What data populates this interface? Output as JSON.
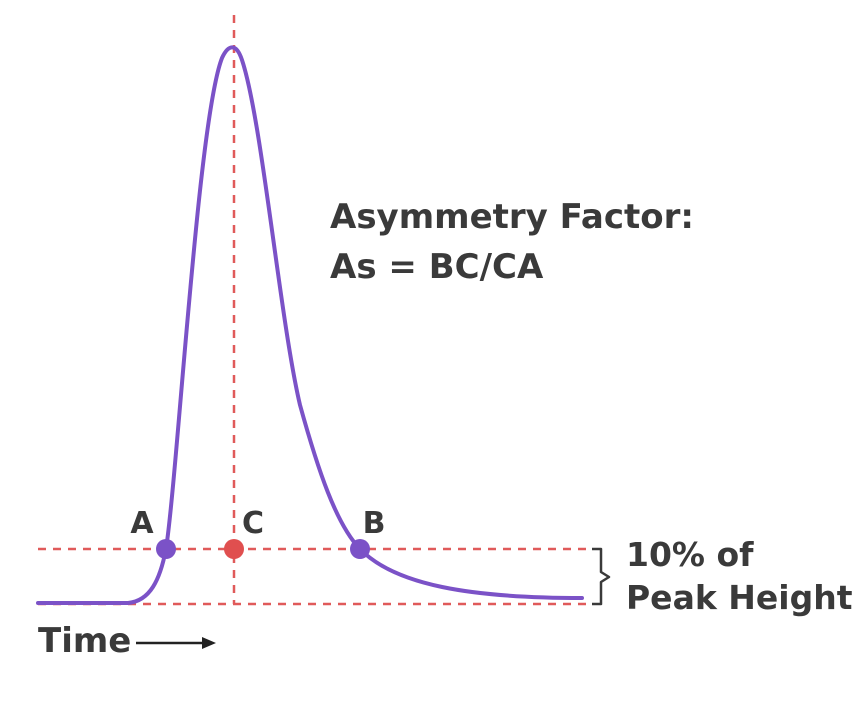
{
  "formula": {
    "line1": "Asymmetry Factor:",
    "line2": "As = BC/CA"
  },
  "points": {
    "a": "A",
    "b": "B",
    "c": "C"
  },
  "bracket": {
    "line1": "10% of",
    "line2": "Peak Height"
  },
  "axis": {
    "time_label": "Time"
  },
  "colors": {
    "curve": "#7b52c7",
    "guide": "#e05a5a",
    "point_ab": "#7b52c7",
    "point_c": "#e04f4f",
    "text": "#3a3a3a"
  }
}
